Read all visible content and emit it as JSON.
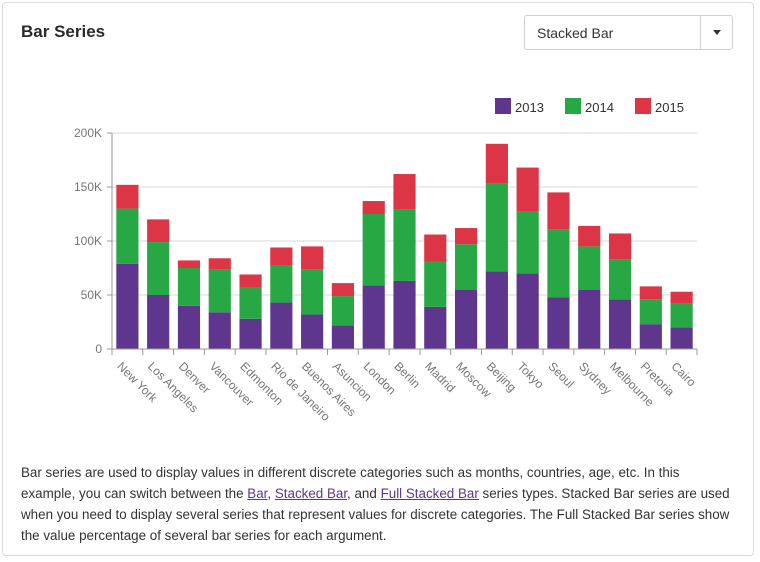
{
  "header": {
    "title": "Bar Series"
  },
  "series_type_select": {
    "value": "Stacked Bar"
  },
  "colors": {
    "2013": "#5f368d",
    "2014": "#28a745",
    "2015": "#dc3545",
    "grid": "#d9d9d9",
    "axis": "#999999",
    "text": "#767676"
  },
  "chart_data": {
    "type": "bar",
    "stacked": true,
    "title": "",
    "xlabel": "",
    "ylabel": "",
    "ylim": [
      0,
      200000
    ],
    "yticks": [
      "0",
      "50K",
      "100K",
      "150K",
      "200K"
    ],
    "legend_position": "top-right",
    "grid": true,
    "categories": [
      "New York",
      "Los Angeles",
      "Denver",
      "Vancouver",
      "Edmonton",
      "Rio de Janeiro",
      "Buenos Aires",
      "Asuncion",
      "London",
      "Berlin",
      "Madrid",
      "Moscow",
      "Beijing",
      "Tokyo",
      "Seoul",
      "Sydney",
      "Melbourne",
      "Pretoria",
      "Cairo"
    ],
    "series": [
      {
        "name": "2013",
        "values": [
          79000,
          50000,
          40000,
          34000,
          28000,
          43000,
          32000,
          22000,
          59000,
          63000,
          39000,
          55000,
          72000,
          70000,
          48000,
          55000,
          46000,
          23000,
          20000
        ]
      },
      {
        "name": "2014",
        "values": [
          51000,
          49000,
          35000,
          40000,
          29000,
          34000,
          42000,
          27000,
          66000,
          66000,
          42000,
          42000,
          81000,
          57000,
          63000,
          40000,
          37000,
          23000,
          22000
        ]
      },
      {
        "name": "2015",
        "values": [
          22000,
          21000,
          7000,
          10000,
          12000,
          17000,
          21000,
          12000,
          12000,
          33000,
          25000,
          15000,
          37000,
          41000,
          34000,
          19000,
          24000,
          12000,
          11000
        ]
      }
    ]
  },
  "description": {
    "text1": "Bar series are used to display values in different discrete categories such as months, countries, age, etc. In this example, you can switch between the ",
    "link_bar": "Bar",
    "sep1": ", ",
    "link_stacked": "Stacked Bar",
    "sep2": ", and ",
    "link_full": "Full Stacked Bar",
    "text2": " series types. Stacked Bar series are used when you need to display several series that represent values for discrete categories. The Full Stacked Bar series show the value percentage of several bar series for each argument."
  }
}
